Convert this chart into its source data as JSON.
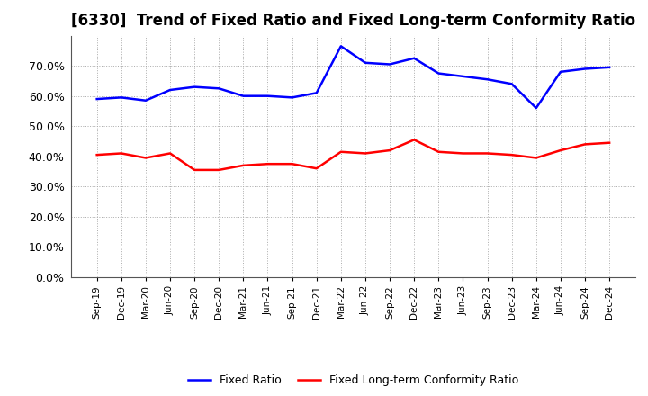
{
  "title": "[6330]  Trend of Fixed Ratio and Fixed Long-term Conformity Ratio",
  "x_labels": [
    "Sep-19",
    "Dec-19",
    "Mar-20",
    "Jun-20",
    "Sep-20",
    "Dec-20",
    "Mar-21",
    "Jun-21",
    "Sep-21",
    "Dec-21",
    "Mar-22",
    "Jun-22",
    "Sep-22",
    "Dec-22",
    "Mar-23",
    "Jun-23",
    "Sep-23",
    "Dec-23",
    "Mar-24",
    "Jun-24",
    "Sep-24",
    "Dec-24"
  ],
  "fixed_ratio": [
    59.0,
    59.5,
    58.5,
    62.0,
    63.0,
    62.5,
    60.0,
    60.0,
    59.5,
    61.0,
    76.5,
    71.0,
    70.5,
    72.5,
    67.5,
    66.5,
    65.5,
    64.0,
    56.0,
    68.0,
    69.0,
    69.5
  ],
  "fixed_lt_ratio": [
    40.5,
    41.0,
    39.5,
    41.0,
    35.5,
    35.5,
    37.0,
    37.5,
    37.5,
    36.0,
    41.5,
    41.0,
    42.0,
    45.5,
    41.5,
    41.0,
    41.0,
    40.5,
    39.5,
    42.0,
    44.0,
    44.5
  ],
  "fixed_ratio_color": "#0000FF",
  "fixed_lt_ratio_color": "#FF0000",
  "ylim": [
    0,
    80
  ],
  "yticks": [
    0,
    10,
    20,
    30,
    40,
    50,
    60,
    70
  ],
  "grid_color": "#aaaaaa",
  "background_color": "#ffffff",
  "title_fontsize": 12,
  "legend_fixed": "Fixed Ratio",
  "legend_lt": "Fixed Long-term Conformity Ratio"
}
